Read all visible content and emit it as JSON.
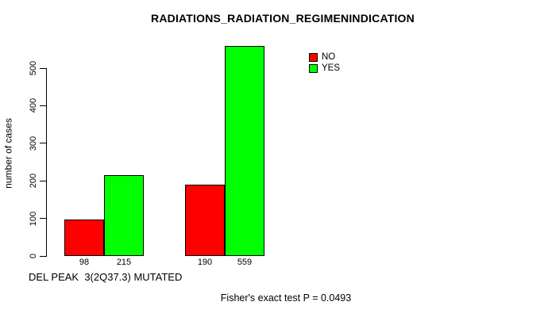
{
  "chart_data": {
    "type": "bar",
    "title": "RADIATIONS_RADIATION_REGIMENINDICATION",
    "ylabel": "number of cases",
    "xlabel": "DEL PEAK  3(2Q37.3) MUTATED",
    "annotation": "Fisher's exact test P = 0.0493",
    "yticks": [
      0,
      100,
      200,
      300,
      400,
      500
    ],
    "ylim": [
      0,
      560
    ],
    "grid": false,
    "legend_position": "top-right",
    "categories": [
      "group-1",
      "group-2"
    ],
    "series": [
      {
        "name": "NO",
        "color": "#ff0000",
        "values": [
          98,
          190
        ]
      },
      {
        "name": "YES",
        "color": "#00ff00",
        "values": [
          215,
          559
        ]
      }
    ],
    "bar_value_labels": [
      "98",
      "215",
      "190",
      "559"
    ]
  }
}
